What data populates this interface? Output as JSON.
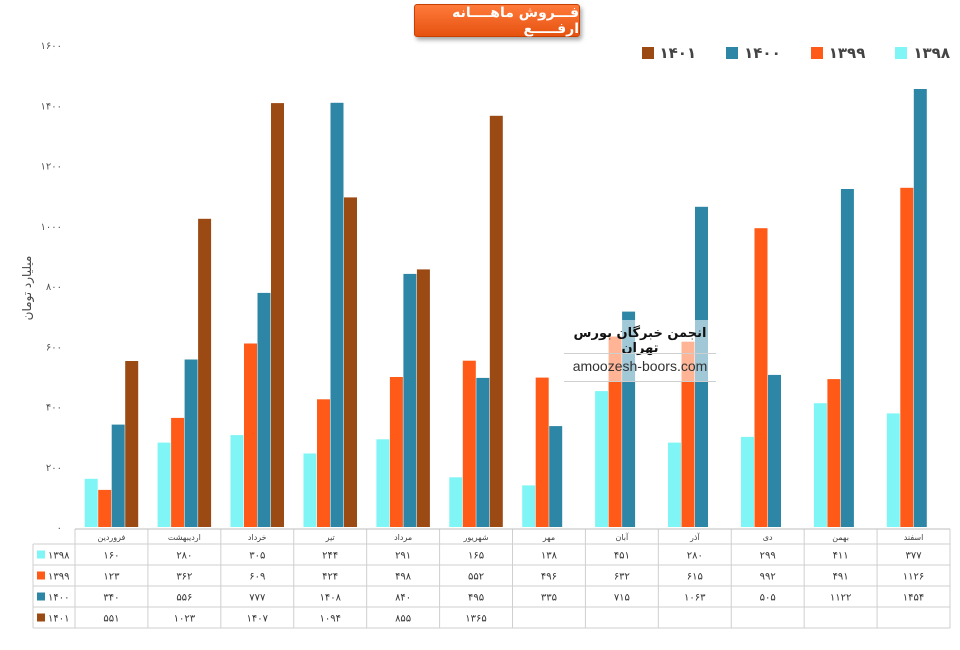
{
  "chart_data": {
    "type": "bar",
    "title": "فـــروش ماهــــانه ارفـــــع",
    "ylabel": "میلیارد تومان",
    "xlabel": "",
    "ylim": [
      0,
      1600
    ],
    "yticks": [
      "۰",
      "۲۰۰",
      "۴۰۰",
      "۶۰۰",
      "۸۰۰",
      "۱۰۰۰",
      "۱۲۰۰",
      "۱۴۰۰",
      "۱۶۰۰"
    ],
    "categories": [
      "فروردین",
      "اردیبهشت",
      "خرداد",
      "تیر",
      "مرداد",
      "شهریور",
      "مهر",
      "آبان",
      "آذر",
      "دی",
      "بهمن",
      "اسفند"
    ],
    "series": [
      {
        "name": "۱۳۹۸",
        "color": "#7ff5f5",
        "values": [
          160,
          280,
          305,
          244,
          291,
          165,
          138,
          451,
          280,
          299,
          411,
          377
        ],
        "labels": [
          "۱۶۰",
          "۲۸۰",
          "۳۰۵",
          "۲۴۴",
          "۲۹۱",
          "۱۶۵",
          "۱۳۸",
          "۴۵۱",
          "۲۸۰",
          "۲۹۹",
          "۴۱۱",
          "۳۷۷"
        ]
      },
      {
        "name": "۱۳۹۹",
        "color": "#ff5a17",
        "values": [
          123,
          362,
          609,
          424,
          498,
          552,
          496,
          632,
          615,
          992,
          491,
          1126
        ],
        "labels": [
          "۱۲۳",
          "۳۶۲",
          "۶۰۹",
          "۴۲۴",
          "۴۹۸",
          "۵۵۲",
          "۴۹۶",
          "۶۳۲",
          "۶۱۵",
          "۹۹۲",
          "۴۹۱",
          "۱۱۲۶"
        ]
      },
      {
        "name": "۱۴۰۰",
        "color": "#2e86a6",
        "values": [
          340,
          556,
          777,
          1408,
          840,
          495,
          335,
          715,
          1063,
          505,
          1122,
          1454
        ],
        "labels": [
          "۳۴۰",
          "۵۵۶",
          "۷۷۷",
          "۱۴۰۸",
          "۸۴۰",
          "۴۹۵",
          "۳۳۵",
          "۷۱۵",
          "۱۰۶۳",
          "۵۰۵",
          "۱۱۲۲",
          "۱۴۵۴"
        ]
      },
      {
        "name": "۱۴۰۱",
        "color": "#9c4a13",
        "values": [
          551,
          1023,
          1407,
          1094,
          855,
          1365,
          null,
          null,
          null,
          null,
          null,
          null
        ],
        "labels": [
          "۵۵۱",
          "۱۰۲۳",
          "۱۴۰۷",
          "۱۰۹۴",
          "۸۵۵",
          "۱۳۶۵",
          "",
          "",
          "",
          "",
          "",
          ""
        ]
      }
    ],
    "legend_position": "top-right",
    "grid": false,
    "data_table": true
  },
  "watermark": {
    "title": "انجمن خبرگان بورس تهران",
    "url": "amoozesh-boors.com"
  }
}
